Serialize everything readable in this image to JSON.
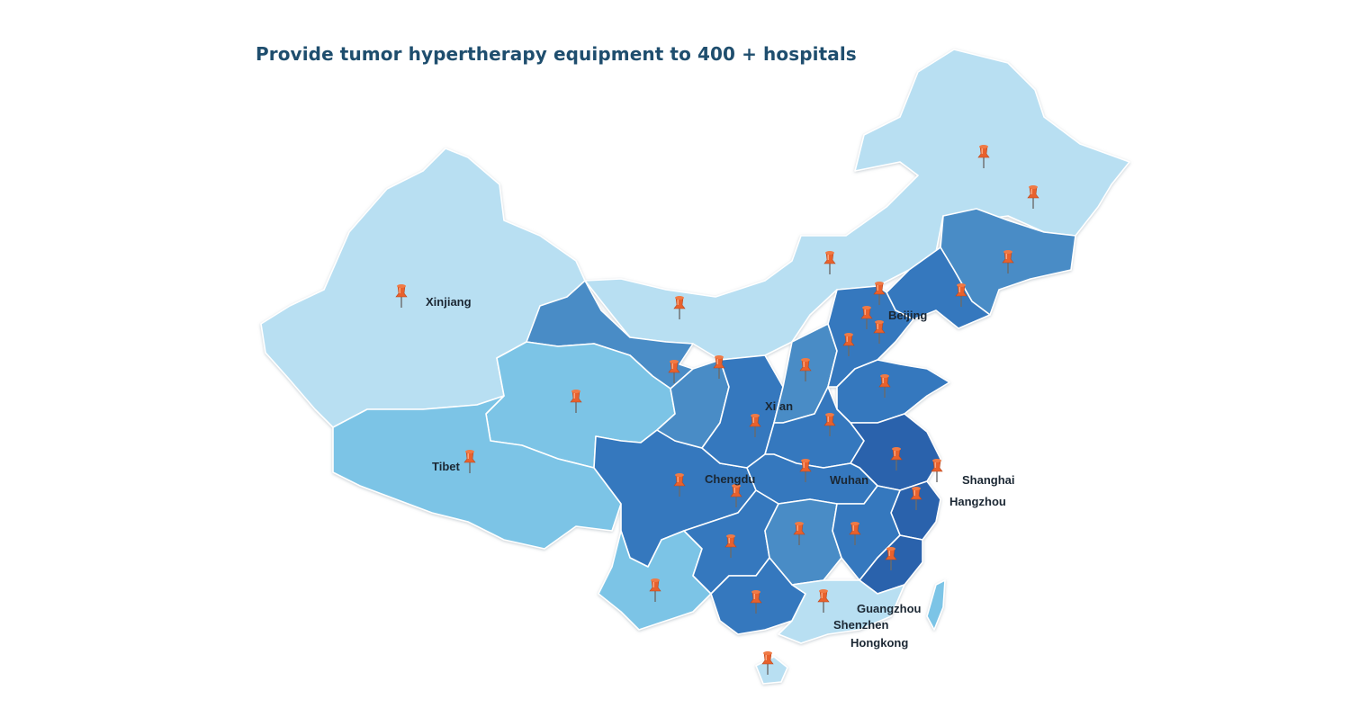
{
  "title": "Provide tumor hypertherapy equipment to 400 + hospitals",
  "colors": {
    "lightest": "#b8dff2",
    "light": "#7bc4e6",
    "medium": "#4a8cc6",
    "dark": "#3478be",
    "darkest": "#2b62ac",
    "pin": "#e8612d",
    "label": "#1b2733"
  },
  "cities": {
    "xinjiang": "Xinjiang",
    "tibet": "Tibet",
    "beijing": "Beijing",
    "xian": "Xi an",
    "chengdu": "Chengdu",
    "wuhan": "Wuhan",
    "shanghai": "Shanghai",
    "hangzhou": "Hangzhou",
    "guangzhou": "Guangzhou",
    "shenzhen": "Shenzhen",
    "hongkong": "Hongkong"
  },
  "pin_icon": "pushpin-icon"
}
